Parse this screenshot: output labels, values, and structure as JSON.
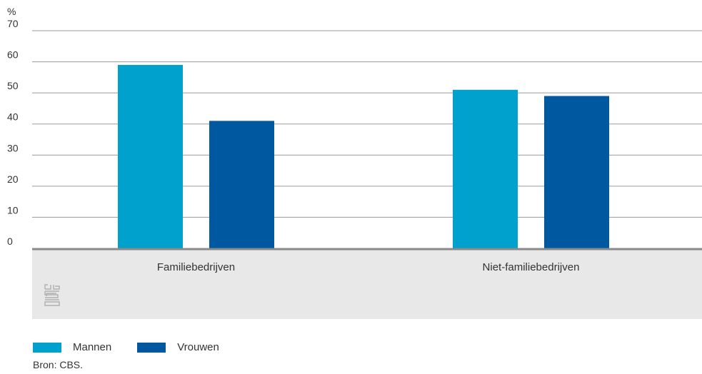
{
  "chart_data": {
    "type": "bar",
    "ylabel": "%",
    "ylim": [
      0,
      70
    ],
    "yticks": [
      0,
      10,
      20,
      30,
      40,
      50,
      60,
      70
    ],
    "categories": [
      "Familiebedrijven",
      "Niet-familiebedrijven"
    ],
    "series": [
      {
        "name": "Mannen",
        "values": [
          59,
          51
        ],
        "color": "#00a1cd"
      },
      {
        "name": "Vrouwen",
        "values": [
          41,
          49
        ],
        "color": "#0058a0"
      }
    ],
    "grid": true,
    "legend_position": "bottom-left",
    "logo": "cbs-logo"
  },
  "source": "Bron: CBS."
}
